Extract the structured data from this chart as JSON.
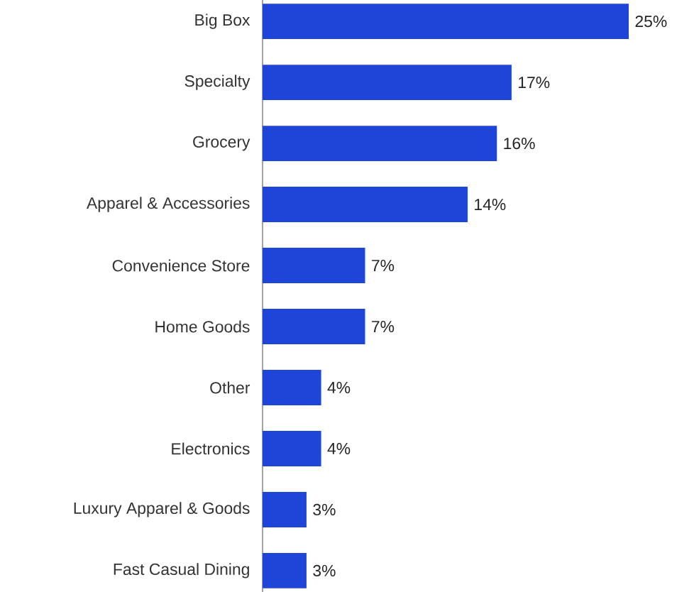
{
  "chart_data": {
    "type": "bar",
    "orientation": "horizontal",
    "categories": [
      "Big Box",
      "Specialty",
      "Grocery",
      "Apparel & Accessories",
      "Convenience Store",
      "Home Goods",
      "Other",
      "Electronics",
      "Luxury Apparel & Goods",
      "Fast Casual Dining"
    ],
    "values": [
      25,
      17,
      16,
      14,
      7,
      7,
      4,
      4,
      3,
      3
    ],
    "value_labels": [
      "25%",
      "17%",
      "16%",
      "14%",
      "7%",
      "7%",
      "4%",
      "4%",
      "3%",
      "3%"
    ],
    "color": "#1f45d8"
  }
}
